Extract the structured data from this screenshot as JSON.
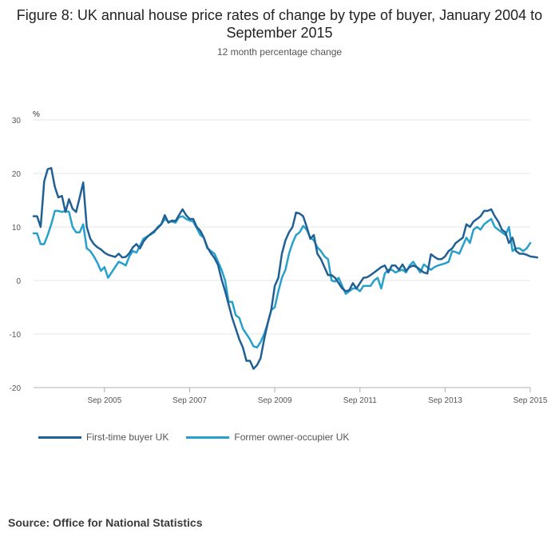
{
  "title": "Figure 8: UK annual house price rates of change by type of buyer, January 2004 to September 2015",
  "subtitle": "12 month percentage change",
  "source": "Source: Office for National Statistics",
  "chart_data": {
    "type": "line",
    "title": "Figure 8: UK annual house price rates of change by type of buyer, January 2004 to September 2015",
    "subtitle": "12 month percentage change",
    "ylabel": "%",
    "ylim": [
      -20,
      30
    ],
    "yticks": [
      30,
      20,
      10,
      0,
      -10,
      -20
    ],
    "x_start": "Jan 2004",
    "x_end": "Sep 2015",
    "n_points": 141,
    "xticks": [
      {
        "label": "Sep 2005",
        "index": 20
      },
      {
        "label": "Sep 2007",
        "index": 44
      },
      {
        "label": "Sep 2009",
        "index": 68
      },
      {
        "label": "Sep 2011",
        "index": 92
      },
      {
        "label": "Sep 2013",
        "index": 116
      },
      {
        "label": "Sep 2015",
        "index": 140
      }
    ],
    "grid": true,
    "legend_position": "bottom-left",
    "series": [
      {
        "name": "First-time buyer UK",
        "color": "#206095",
        "values": [
          12.0,
          12.0,
          10.0,
          18.5,
          20.8,
          21.0,
          17.5,
          15.5,
          15.8,
          12.8,
          15.2,
          13.4,
          12.8,
          15.5,
          18.3,
          10.0,
          7.8,
          6.8,
          6.2,
          5.8,
          5.2,
          4.8,
          4.6,
          4.4,
          5.0,
          4.3,
          4.4,
          5.1,
          6.2,
          6.8,
          6.0,
          7.3,
          8.1,
          8.7,
          9.2,
          9.8,
          10.5,
          12.2,
          10.8,
          11.2,
          11.1,
          12.2,
          13.3,
          12.2,
          11.5,
          11.5,
          10.0,
          9.3,
          8.0,
          6.2,
          5.1,
          4.2,
          2.9,
          0.2,
          -2.0,
          -4.5,
          -7.0,
          -9.0,
          -11.0,
          -12.5,
          -15.0,
          -15.0,
          -16.5,
          -15.8,
          -14.5,
          -11.0,
          -8.0,
          -5.5,
          -1.0,
          0.5,
          5.0,
          7.5,
          9.0,
          10.0,
          12.7,
          12.5,
          12.0,
          10.0,
          7.8,
          8.5,
          5.0,
          4.0,
          2.5,
          1.0,
          1.0,
          0.5,
          -0.5,
          -1.5,
          -2.0,
          -1.8,
          -0.5,
          -1.5,
          -0.5,
          0.5,
          0.6,
          1.0,
          1.5,
          2.0,
          2.5,
          2.8,
          1.5,
          2.8,
          2.8,
          2.0,
          3.0,
          1.8,
          2.5,
          2.8,
          2.5,
          2.0,
          1.5,
          1.3,
          4.9,
          4.4,
          4.0,
          4.0,
          4.5,
          5.5,
          6.0,
          7.0,
          7.5,
          8.0,
          10.5,
          10.0,
          11.0,
          11.5,
          12.0,
          13.0,
          13.0,
          13.3,
          12.0,
          11.0,
          9.5,
          9.0,
          7.0,
          8.0,
          5.5,
          5.0,
          5.0,
          4.8,
          4.5,
          4.4,
          4.3
        ]
      },
      {
        "name": "Former owner-occupier UK",
        "color": "#27a0cc",
        "values": [
          8.8,
          8.8,
          6.8,
          6.8,
          8.5,
          10.5,
          13.0,
          13.0,
          12.8,
          13.0,
          12.8,
          10.0,
          9.0,
          9.0,
          10.5,
          6.0,
          5.5,
          4.5,
          3.3,
          1.8,
          2.5,
          0.5,
          1.5,
          2.5,
          3.5,
          3.2,
          2.8,
          4.5,
          5.5,
          5.2,
          6.5,
          7.8,
          8.2,
          8.6,
          9.0,
          10.0,
          10.5,
          11.5,
          11.0,
          11.0,
          10.8,
          11.8,
          12.0,
          11.5,
          11.2,
          11.0,
          9.8,
          8.5,
          8.0,
          6.0,
          5.5,
          5.0,
          3.5,
          2.0,
          0.0,
          -4.0,
          -4.0,
          -6.5,
          -7.0,
          -9.0,
          -10.0,
          -11.0,
          -12.3,
          -12.5,
          -11.5,
          -10.0,
          -8.0,
          -5.5,
          -5.0,
          -2.0,
          0.5,
          2.0,
          5.0,
          7.0,
          8.5,
          9.0,
          10.2,
          9.5,
          8.0,
          7.5,
          6.2,
          5.5,
          4.5,
          4.0,
          0.0,
          -0.2,
          0.5,
          -1.0,
          -2.5,
          -2.0,
          -1.5,
          -1.5,
          -2.0,
          -1.0,
          -1.0,
          -1.0,
          0.0,
          0.5,
          -1.5,
          1.3,
          2.0,
          2.0,
          1.5,
          1.8,
          2.0,
          1.5,
          2.8,
          3.5,
          2.5,
          1.5,
          3.0,
          2.5,
          2.0,
          2.5,
          2.8,
          3.0,
          3.2,
          3.5,
          5.5,
          5.3,
          5.0,
          6.5,
          8.0,
          7.0,
          9.5,
          10.0,
          9.5,
          10.5,
          11.0,
          11.5,
          10.0,
          9.5,
          9.0,
          8.5,
          10.0,
          5.5,
          6.0,
          6.0,
          5.5,
          6.0,
          7.0
        ]
      }
    ]
  }
}
